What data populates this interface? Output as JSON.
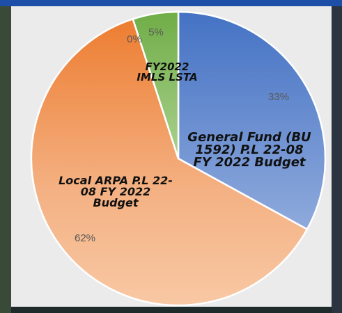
{
  "chart_data": {
    "type": "pie",
    "categories": [
      "General Fund (BU 1592) P.L 22-08 FY 2022 Budget",
      "Local ARPA P.L 22-08 FY 2022 Budget",
      null,
      "FY2022 IMLS LSTA"
    ],
    "values": [
      33,
      62,
      0,
      5
    ],
    "value_labels": [
      "33%",
      "62%",
      "0%",
      "5%"
    ],
    "colors": [
      "#4472c4",
      "#ed7d31",
      "#a5a5a5",
      "#70ad47"
    ]
  }
}
